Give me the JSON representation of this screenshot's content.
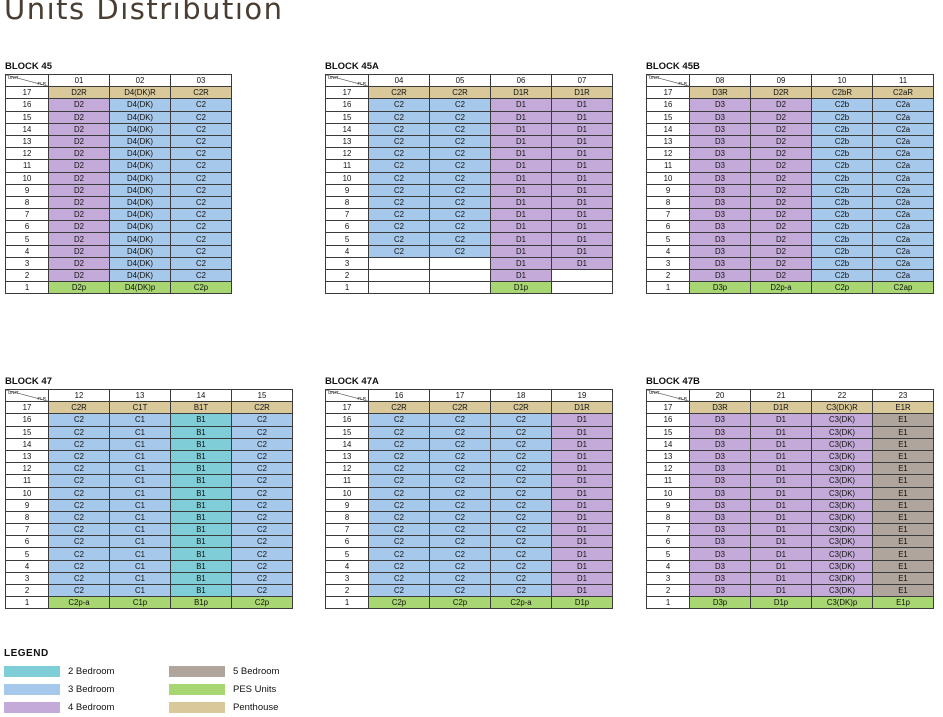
{
  "page_title": "Units Distribution",
  "corner_unit_label": "UNIT",
  "corner_floor_label": "FLR",
  "colors": {
    "pent": "#d8c89a",
    "pes": "#a7d672",
    "2br": "#7fcdd6",
    "3br": "#a6c8ea",
    "4br": "#c4aad8",
    "5br": "#b0a59c",
    "white": "#ffffff"
  },
  "floors": [
    "17",
    "16",
    "15",
    "14",
    "13",
    "12",
    "11",
    "10",
    "9",
    "8",
    "7",
    "6",
    "5",
    "4",
    "3",
    "2",
    "1"
  ],
  "blocks": [
    {
      "title": "BLOCK 45",
      "units": [
        {
          "no": "01",
          "pent": "D2R",
          "typical": "D2",
          "typical_color": "4br",
          "pes": "D2p"
        },
        {
          "no": "02",
          "pent": "D4(DK)R",
          "typical": "D4(DK)",
          "typical_color": "3br",
          "pes": "D4(DK)p"
        },
        {
          "no": "03",
          "pent": "C2R",
          "typical": "C2",
          "typical_color": "3br",
          "pes": "C2p"
        }
      ]
    },
    {
      "title": "BLOCK 45A",
      "units": [
        {
          "no": "04",
          "pent": "C2R",
          "typical": "C2",
          "typical_color": "3br",
          "pes": "",
          "empty_floors": [
            "3",
            "2",
            "1"
          ]
        },
        {
          "no": "05",
          "pent": "C2R",
          "typical": "C2",
          "typical_color": "3br",
          "pes": "",
          "empty_floors": [
            "3",
            "2",
            "1"
          ]
        },
        {
          "no": "06",
          "pent": "D1R",
          "typical": "D1",
          "typical_color": "4br",
          "pes": "D1p"
        },
        {
          "no": "07",
          "pent": "D1R",
          "typical": "D1",
          "typical_color": "4br",
          "pes": "",
          "empty_floors": [
            "2",
            "1"
          ]
        }
      ]
    },
    {
      "title": "BLOCK 45B",
      "units": [
        {
          "no": "08",
          "pent": "D3R",
          "typical": "D3",
          "typical_color": "4br",
          "pes": "D3p"
        },
        {
          "no": "09",
          "pent": "D2R",
          "typical": "D2",
          "typical_color": "4br",
          "pes": "D2p-a"
        },
        {
          "no": "10",
          "pent": "C2bR",
          "typical": "C2b",
          "typical_color": "3br",
          "pes": "C2p"
        },
        {
          "no": "11",
          "pent": "C2aR",
          "typical": "C2a",
          "typical_color": "3br",
          "pes": "C2ap"
        }
      ]
    },
    {
      "title": "BLOCK 47",
      "units": [
        {
          "no": "12",
          "pent": "C2R",
          "typical": "C2",
          "typical_color": "3br",
          "pes": "C2p-a"
        },
        {
          "no": "13",
          "pent": "C1T",
          "typical": "C1",
          "typical_color": "3br",
          "pes": "C1p"
        },
        {
          "no": "14",
          "pent": "B1T",
          "typical": "B1",
          "typical_color": "2br",
          "pes": "B1p"
        },
        {
          "no": "15",
          "pent": "C2R",
          "typical": "C2",
          "typical_color": "3br",
          "pes": "C2p"
        }
      ]
    },
    {
      "title": "BLOCK 47A",
      "units": [
        {
          "no": "16",
          "pent": "C2R",
          "typical": "C2",
          "typical_color": "3br",
          "pes": "C2p"
        },
        {
          "no": "17",
          "pent": "C2R",
          "typical": "C2",
          "typical_color": "3br",
          "pes": "C2p"
        },
        {
          "no": "18",
          "pent": "C2R",
          "typical": "C2",
          "typical_color": "3br",
          "pes": "C2p-a"
        },
        {
          "no": "19",
          "pent": "D1R",
          "typical": "D1",
          "typical_color": "4br",
          "pes": "D1p"
        }
      ]
    },
    {
      "title": "BLOCK 47B",
      "units": [
        {
          "no": "20",
          "pent": "D3R",
          "typical": "D3",
          "typical_color": "4br",
          "pes": "D3p"
        },
        {
          "no": "21",
          "pent": "D1R",
          "typical": "D1",
          "typical_color": "4br",
          "pes": "D1p"
        },
        {
          "no": "22",
          "pent": "C3(DK)R",
          "typical": "C3(DK)",
          "typical_color": "4br",
          "pes": "C3(DK)p"
        },
        {
          "no": "23",
          "pent": "E1R",
          "typical": "E1",
          "typical_color": "5br",
          "pes": "E1p"
        }
      ]
    }
  ],
  "legend": {
    "title": "LEGEND",
    "items": [
      {
        "label": "2 Bedroom",
        "color": "2br"
      },
      {
        "label": "5 Bedroom",
        "color": "5br"
      },
      {
        "label": "3 Bedroom",
        "color": "3br"
      },
      {
        "label": "PES Units",
        "color": "pes"
      },
      {
        "label": "4 Bedroom",
        "color": "4br"
      },
      {
        "label": "Penthouse",
        "color": "pent"
      }
    ]
  }
}
